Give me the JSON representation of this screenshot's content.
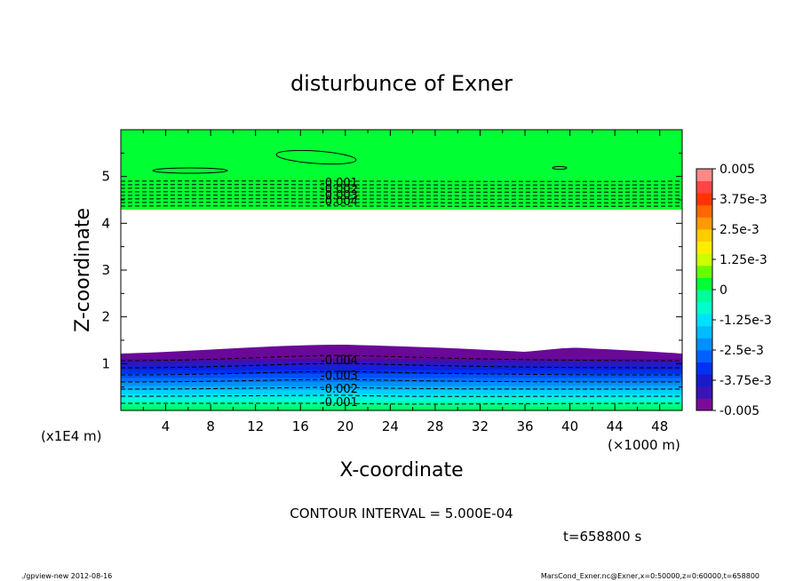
{
  "chart_data": {
    "type": "contour",
    "title": "disturbunce of Exner",
    "xlabel": "X-coordinate",
    "ylabel": "Z-coordinate",
    "x_unit_label": "(×1000 m)",
    "y_unit_label": "(x1E4 m)",
    "xlim": [
      0,
      50
    ],
    "ylim": [
      0,
      6
    ],
    "x_ticks": [
      4,
      8,
      12,
      16,
      20,
      24,
      28,
      32,
      36,
      40,
      44,
      48
    ],
    "y_ticks": [
      1,
      2,
      3,
      4,
      5
    ],
    "contour_interval_label": "CONTOUR INTERVAL = 5.000E-04",
    "time_label": "t=658800 s",
    "colorbar": {
      "min": -0.005,
      "max": 0.005,
      "labels": [
        "0.005",
        "3.75e-3",
        "2.5e-3",
        "1.25e-3",
        "0",
        "-1.25e-3",
        "-2.5e-3",
        "-3.75e-3",
        "-0.005"
      ]
    },
    "upper_band_labels": [
      "-0.001",
      "-0.002",
      "-0.003",
      "-0.004"
    ],
    "lower_band_labels": [
      "-0.004",
      "-0.003",
      "-0.002",
      "-0.001"
    ]
  },
  "footer": {
    "left": "./gpview-new   2012-08-16",
    "right": "MarsCond_Exner.nc@Exner,x=0:50000,z=0:60000,t=658800"
  }
}
